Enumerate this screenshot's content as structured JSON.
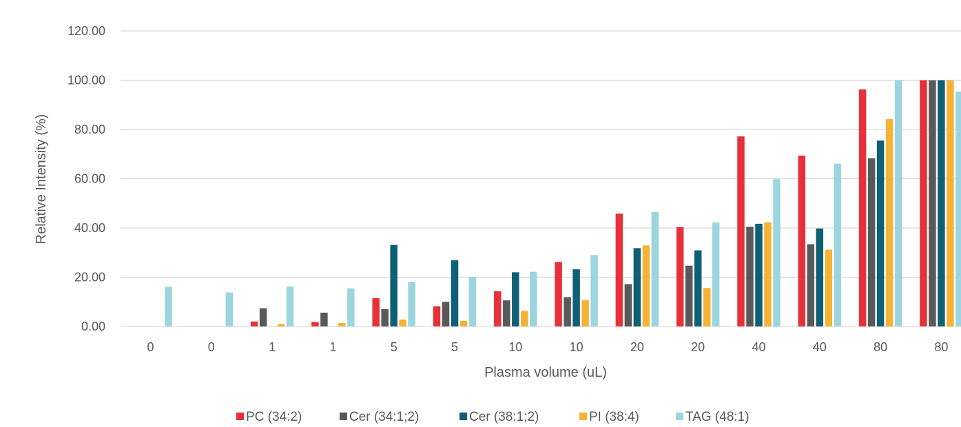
{
  "chart_data": {
    "type": "bar",
    "title": "",
    "xlabel": "Plasma volume (uL)",
    "ylabel": "Relative Intensity (%)",
    "categories": [
      "0",
      "0",
      "1",
      "1",
      "5",
      "5",
      "10",
      "10",
      "20",
      "20",
      "40",
      "40",
      "80",
      "80"
    ],
    "ylim": [
      0,
      120
    ],
    "yticks": [
      "0.00",
      "20.00",
      "40.00",
      "60.00",
      "80.00",
      "100.00",
      "120.00"
    ],
    "grid": true,
    "legend_position": "bottom",
    "series": [
      {
        "name": "PC (34:2)",
        "color": "#E8303A",
        "values": [
          0,
          0,
          2.0,
          1.8,
          11.5,
          8.2,
          14.3,
          26.2,
          45.8,
          40.3,
          77.2,
          69.4,
          96.3,
          100
        ]
      },
      {
        "name": "Cer (34:1;2)",
        "color": "#595959",
        "values": [
          0,
          0,
          7.4,
          5.6,
          7.0,
          10.0,
          10.6,
          11.9,
          17.2,
          24.7,
          40.5,
          33.4,
          68.3,
          100
        ]
      },
      {
        "name": "Cer (38:1;2)",
        "color": "#0F5F75",
        "values": [
          0,
          0,
          0,
          0,
          33.1,
          26.9,
          22.0,
          23.2,
          31.8,
          30.9,
          41.7,
          39.8,
          75.5,
          100
        ]
      },
      {
        "name": "PI (38:4)",
        "color": "#F5B335",
        "values": [
          0,
          0,
          1.0,
          1.4,
          2.8,
          2.3,
          6.3,
          10.7,
          32.9,
          15.6,
          42.3,
          31.2,
          84.2,
          100
        ]
      },
      {
        "name": "TAG (48:1)",
        "color": "#9DD5DF",
        "values": [
          16.1,
          13.8,
          16.2,
          15.5,
          18.1,
          20.1,
          22.2,
          29.0,
          46.5,
          42.2,
          59.8,
          66.1,
          100,
          95.4
        ]
      }
    ]
  }
}
